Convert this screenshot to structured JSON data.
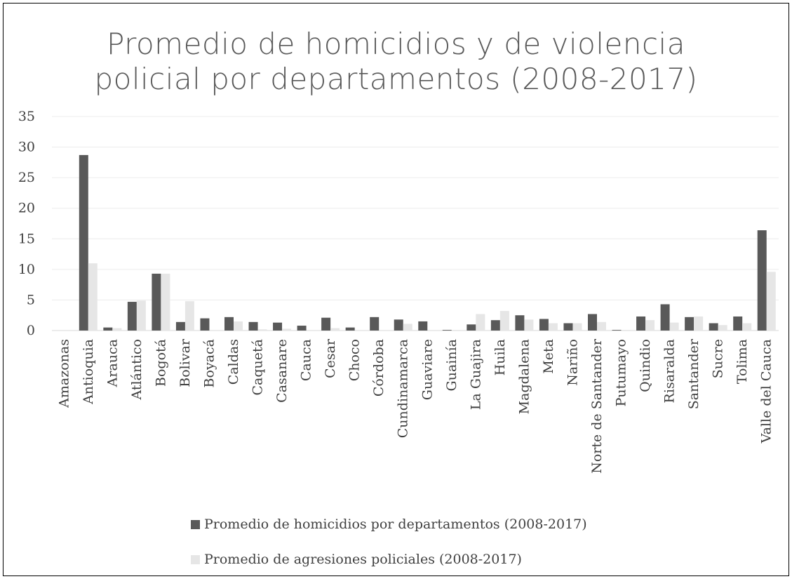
{
  "chart_data": {
    "type": "bar",
    "title_line1": "Promedio de homicidios y de violencia",
    "title_line2": "policial por departamentos (2008-2017)",
    "ylim": [
      0,
      35
    ],
    "yticks": [
      0,
      5,
      10,
      15,
      20,
      25,
      30,
      35
    ],
    "grid": true,
    "legend_position": "bottom",
    "categories": [
      "Amazonas",
      "Antioquia",
      "Arauca",
      "Atlántico",
      "Bogotá",
      "Bolivar",
      "Boyacá",
      "Caldas",
      "Caquetá",
      "Casanare",
      "Cauca",
      "Cesar",
      "Choco",
      "Córdoba",
      "Cundinamarca",
      "Guaviare",
      "Guainía",
      "La Guajira",
      "Huila",
      "Magdalena",
      "Meta",
      "Nariño",
      "Norte de Santander",
      "Putumayo",
      "Quindio",
      "Risaralda",
      "Santander",
      "Sucre",
      "Tolima",
      "Valle del Cauca"
    ],
    "series": [
      {
        "name": "Promedio de homicidios por departamentos (2008-2017)",
        "color": "#595959",
        "values": [
          0,
          28.7,
          0.5,
          4.7,
          9.3,
          1.4,
          2.0,
          2.2,
          1.4,
          1.3,
          0.8,
          2.1,
          0.5,
          2.2,
          1.8,
          1.5,
          0.1,
          1.0,
          1.7,
          2.5,
          1.9,
          1.2,
          2.7,
          0.1,
          2.3,
          4.3,
          2.2,
          1.2,
          2.3,
          16.4
        ]
      },
      {
        "name": "Promedio de agresiones policiales (2008-2017)",
        "color": "#e6e6e6",
        "values": [
          0,
          11.0,
          0.4,
          4.9,
          9.3,
          4.8,
          0,
          1.5,
          0.2,
          0.3,
          0,
          0.4,
          0,
          0,
          1.1,
          0,
          0.1,
          2.7,
          3.2,
          1.8,
          1.2,
          1.2,
          1.4,
          0.1,
          1.7,
          1.3,
          2.3,
          0.9,
          1.2,
          9.6
        ]
      }
    ]
  }
}
